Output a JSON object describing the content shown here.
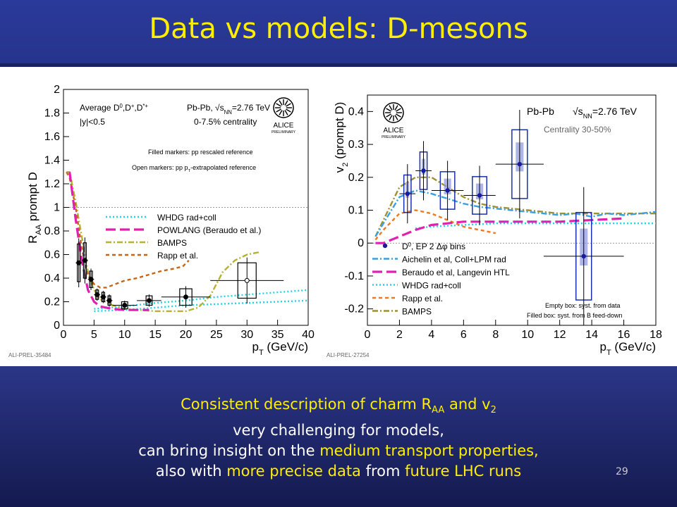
{
  "slide": {
    "title": "Data vs models: D-mesons",
    "page_number": "29",
    "summary": {
      "line1_text": "Consistent description of charm R",
      "line1_sub": "AA",
      "line1_mid": " and v",
      "line1_sub2": "2",
      "line2": "very challenging for models,",
      "line3_pre": "can bring insight on the ",
      "line3_hl": "medium transport properties,",
      "line4_pre": "also with ",
      "line4_hl1": "more precise data",
      "line4_mid": " from ",
      "line4_hl2": "future LHC runs"
    }
  },
  "chart_data": [
    {
      "type": "scatter",
      "ylabel_main": "R",
      "ylabel_sub": "AA",
      "ylabel_rest": " prompt D",
      "xlabel_main": "p",
      "xlabel_sub": "T",
      "xlabel_rest": " (GeV/c)",
      "xlim": [
        0,
        40
      ],
      "ylim": [
        0,
        2
      ],
      "xticks": [
        "0",
        "5",
        "10",
        "15",
        "20",
        "25",
        "30",
        "35",
        "40"
      ],
      "yticks": [
        "0",
        "0.2",
        "0.4",
        "0.6",
        "0.8",
        "1",
        "1.2",
        "1.4",
        "1.6",
        "1.8",
        "2"
      ],
      "header_left_1": "Average D",
      "header_left_1_sup": "0",
      "header_left_1_rest": ",D",
      "header_left_1_sup2": "+",
      "header_left_1_rest2": ",D",
      "header_left_1_sup3": "*+",
      "header_left_2": "|y|<0.5",
      "header_right_1": "Pb-Pb, √s",
      "header_right_1_sub": "NN",
      "header_right_1_rest": "=2.76 TeV",
      "header_right_2": "0-7.5% centrality",
      "note_1": "Filled markers: pp rescaled reference",
      "note_2": "Open markers: pp p",
      "note_2_sub": "T",
      "note_2_rest": "-extrapolated reference",
      "logo_text": "ALICE",
      "logo_sub": "PRELIMINARY",
      "preliminary_id": "ALI-PREL-35484",
      "legend": [
        {
          "label": "WHDG rad+coll",
          "color": "#22d3e6",
          "style": "dotted"
        },
        {
          "label": "POWLANG (Beraudo et al.)",
          "color": "#e020b0",
          "style": "longdash"
        },
        {
          "label": "BAMPS",
          "color": "#b8b030",
          "style": "dashdot"
        },
        {
          "label": "Rapp et al.",
          "color": "#c86414",
          "style": "dashed"
        }
      ],
      "points_filled": [
        {
          "x": 2.5,
          "y": 0.53,
          "xerr": 0.5,
          "yerr": 0.16
        },
        {
          "x": 3.5,
          "y": 0.55,
          "xerr": 0.5,
          "yerr": 0.15
        },
        {
          "x": 4.5,
          "y": 0.39,
          "xerr": 0.5,
          "yerr": 0.07
        },
        {
          "x": 5.5,
          "y": 0.26,
          "xerr": 0.5,
          "yerr": 0.04
        },
        {
          "x": 6.5,
          "y": 0.24,
          "xerr": 0.5,
          "yerr": 0.04
        },
        {
          "x": 7.5,
          "y": 0.21,
          "xerr": 0.5,
          "yerr": 0.04
        },
        {
          "x": 10,
          "y": 0.17,
          "xerr": 2,
          "yerr": 0.03
        },
        {
          "x": 14,
          "y": 0.21,
          "xerr": 2,
          "yerr": 0.04
        },
        {
          "x": 20,
          "y": 0.24,
          "xerr": 4,
          "yerr": 0.07
        }
      ],
      "points_open": [
        {
          "x": 30,
          "y": 0.38,
          "xerr": 6,
          "yerr": 0.15
        }
      ],
      "curves": {
        "whdg": {
          "x": [
            5,
            10,
            15,
            20,
            25,
            30,
            35,
            40
          ],
          "y": [
            0.14,
            0.16,
            0.19,
            0.21,
            0.24,
            0.26,
            0.28,
            0.3
          ]
        },
        "whdg_low": {
          "x": [
            5,
            10,
            15,
            20,
            25,
            30,
            35,
            40
          ],
          "y": [
            0.12,
            0.13,
            0.15,
            0.17,
            0.18,
            0.19,
            0.2,
            0.21
          ]
        },
        "powlang": {
          "x": [
            1,
            2,
            3,
            4,
            5,
            6,
            8,
            10,
            14
          ],
          "y": [
            1.3,
            0.9,
            0.55,
            0.3,
            0.2,
            0.16,
            0.14,
            0.13,
            0.13
          ]
        },
        "bamps": {
          "x": [
            0.5,
            1,
            2,
            3,
            4,
            5,
            6,
            8,
            10,
            15,
            20,
            22,
            24,
            26,
            28,
            30,
            32
          ],
          "y": [
            1.3,
            1.3,
            1.05,
            0.75,
            0.45,
            0.3,
            0.22,
            0.17,
            0.14,
            0.12,
            0.12,
            0.15,
            0.25,
            0.45,
            0.55,
            0.6,
            0.62
          ]
        },
        "rapp": {
          "x": [
            0.5,
            1,
            2,
            3,
            4,
            5,
            6,
            7,
            8,
            10,
            12,
            14,
            16,
            18,
            19.5,
            20.5
          ],
          "y": [
            1.3,
            1.25,
            1.0,
            0.65,
            0.42,
            0.35,
            0.32,
            0.32,
            0.34,
            0.38,
            0.4,
            0.43,
            0.46,
            0.48,
            0.5,
            0.55
          ]
        }
      }
    },
    {
      "type": "scatter",
      "ylabel_main": "v",
      "ylabel_sub": "2",
      "ylabel_rest": " (prompt D)",
      "xlabel_main": "p",
      "xlabel_sub": "T",
      "xlabel_rest": " (GeV/c)",
      "xlim": [
        0,
        18
      ],
      "ylim": [
        -0.25,
        0.45
      ],
      "xticks": [
        "0",
        "2",
        "4",
        "6",
        "8",
        "10",
        "12",
        "14",
        "16",
        "18"
      ],
      "yticks": [
        "-0.2",
        "-0.1",
        "0",
        "0.1",
        "0.2",
        "0.3",
        "0.4"
      ],
      "header_right_1": "Pb-Pb",
      "header_right_2": "√s",
      "header_right_2_sub": "NN",
      "header_right_2_rest": "=2.76 TeV",
      "header_right_3": "Centrality 30-50%",
      "logo_text": "ALICE",
      "logo_sub": "PRELIMINARY",
      "preliminary_id": "ALI-PREL-27254",
      "note_1": "Empty box: syst. from data",
      "note_2": "Filled box: syst. from B feed-down",
      "legend": [
        {
          "label": "D",
          "label_sup": "0",
          "label_rest": ", EP 2 Δφ bins",
          "color": "#1a1aa0",
          "style": "marker"
        },
        {
          "label": "Aichelin et al, Coll+LPM rad",
          "color": "#3aa0e0",
          "style": "dashdot"
        },
        {
          "label": "Beraudo et al, Langevin HTL",
          "color": "#e020b0",
          "style": "longdash"
        },
        {
          "label": "WHDG rad+coll",
          "color": "#22d3e6",
          "style": "dotted"
        },
        {
          "label": "Rapp et al.",
          "color": "#f07820",
          "style": "dashed"
        },
        {
          "label": "BAMPS",
          "color": "#a09030",
          "style": "dashdot"
        }
      ],
      "points": [
        {
          "x": 2.5,
          "y": 0.15,
          "xerr": 0.5,
          "yerr": 0.06
        },
        {
          "x": 3.5,
          "y": 0.22,
          "xerr": 0.5,
          "yerr": 0.06
        },
        {
          "x": 5.0,
          "y": 0.16,
          "xerr": 1.0,
          "yerr": 0.06
        },
        {
          "x": 7.0,
          "y": 0.145,
          "xerr": 1.0,
          "yerr": 0.06
        },
        {
          "x": 9.5,
          "y": 0.24,
          "xerr": 1.5,
          "yerr": 0.11
        },
        {
          "x": 13.5,
          "y": -0.04,
          "xerr": 2.5,
          "yerr": 0.14
        }
      ],
      "curves": {
        "aichelin": {
          "x": [
            0.5,
            1,
            2,
            3,
            4,
            5,
            6,
            7,
            8,
            9,
            10,
            11,
            12,
            13,
            14,
            15,
            16,
            17,
            18
          ],
          "y": [
            0.02,
            0.06,
            0.14,
            0.16,
            0.15,
            0.135,
            0.12,
            0.11,
            0.105,
            0.1,
            0.095,
            0.09,
            0.085,
            0.09,
            0.08,
            0.09,
            0.085,
            0.09,
            0.095
          ]
        },
        "beraudo": {
          "x": [
            0.5,
            1,
            2,
            3,
            4,
            5,
            6,
            7,
            8,
            10,
            12,
            14,
            16
          ],
          "y": [
            0.0,
            0.0,
            0.02,
            0.04,
            0.055,
            0.06,
            0.065,
            0.065,
            0.065,
            0.065,
            0.065,
            0.07,
            0.075
          ]
        },
        "whdg": {
          "x": [
            3,
            4,
            6,
            8,
            10,
            12,
            14,
            16,
            18
          ],
          "y": [
            0.045,
            0.05,
            0.055,
            0.06,
            0.06,
            0.06,
            0.06,
            0.06,
            0.06
          ]
        },
        "rapp": {
          "x": [
            0.5,
            1,
            2,
            3,
            4,
            5,
            6,
            7,
            8
          ],
          "y": [
            0.01,
            0.04,
            0.09,
            0.1,
            0.09,
            0.07,
            0.05,
            0.04,
            0.03
          ]
        },
        "bamps": {
          "x": [
            0.5,
            1,
            2,
            3,
            4,
            5,
            6,
            7,
            8,
            10,
            12,
            14,
            16,
            18
          ],
          "y": [
            0.02,
            0.07,
            0.17,
            0.2,
            0.2,
            0.17,
            0.14,
            0.12,
            0.11,
            0.1,
            0.09,
            0.09,
            0.09,
            0.09
          ]
        }
      }
    }
  ]
}
